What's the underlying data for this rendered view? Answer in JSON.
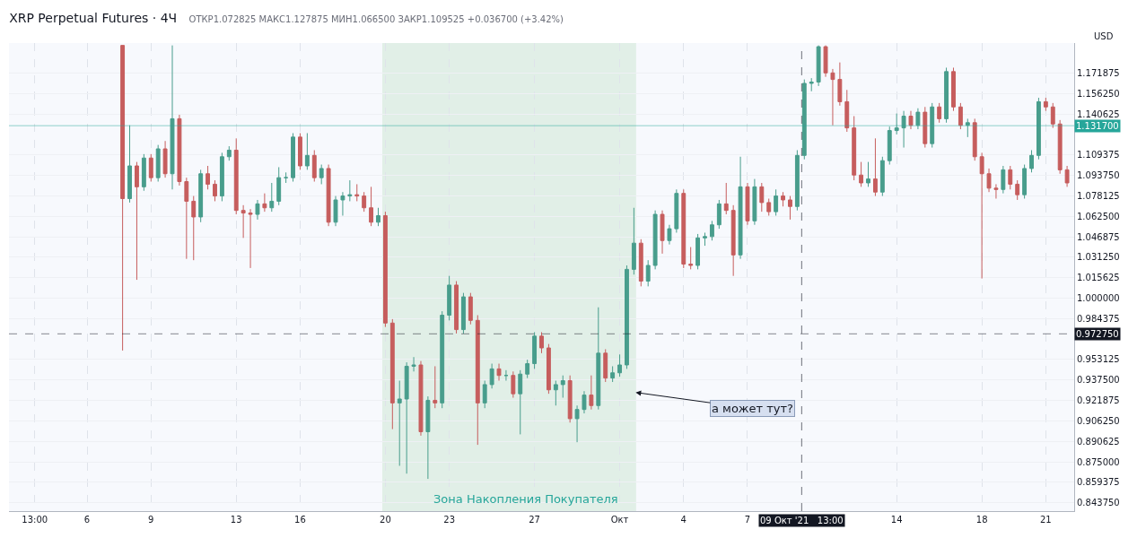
{
  "chart_data": {
    "type": "candlestick",
    "title": "XRP Perpetual Futures · 4Ч",
    "subtitle": "ОТКР1.072825 МАКС1.127875 МИН1.066500 ЗАКР1.109525 +0.036700 (+3.42%)",
    "ylabel": "USD",
    "colors": [
      "#c65d5d",
      "#489d8c",
      "#c65d5d",
      "#489d8c",
      "#c65d5d",
      "#489d8c",
      "#c65d5d",
      "#489d8c",
      "#c65d5d",
      "#c65d5d",
      "#c65d5d",
      "#489d8c",
      "#c65d5d",
      "#c65d5d",
      "#489d8c",
      "#489d8c",
      "#c65d5d",
      "#c65d5d",
      "#c65d5d",
      "#489d8c",
      "#c65d5d",
      "#489d8c",
      "#489d8c",
      "#489d8c",
      "#489d8c",
      "#c65d5d",
      "#489d8c",
      "#c65d5d",
      "#489d8c",
      "#c65d5d",
      "#489d8c",
      "#489d8c",
      "#489d8c",
      "#c65d5d",
      "#c65d5d",
      "#c65d5d",
      "#489d8c",
      "#c65d5d",
      "#c65d5d",
      "#489d8c",
      "#489d8c",
      "#489d8c",
      "#c65d5d",
      "#489d8c",
      "#c65d5d",
      "#489d8c",
      "#489d8c",
      "#c65d5d",
      "#489d8c",
      "#c65d5d",
      "#c65d5d",
      "#489d8c",
      "#489d8c",
      "#c65d5d",
      "#489d8c",
      "#c65d5d",
      "#489d8c",
      "#489d8c",
      "#489d8c",
      "#c65d5d",
      "#c65d5d",
      "#489d8c",
      "#489d8c",
      "#c65d5d",
      "#489d8c",
      "#489d8c",
      "#c65d5d",
      "#489d8c",
      "#c65d5d",
      "#489d8c",
      "#489d8c",
      "#489d8c",
      "#489d8c",
      "#c65d5d",
      "#489d8c",
      "#489d8c",
      "#c65d5d",
      "#489d8c",
      "#489d8c",
      "#c65d5d",
      "#c65d5d",
      "#489d8c",
      "#489d8c",
      "#489d8c",
      "#489d8c",
      "#c65d5d",
      "#c65d5d",
      "#489d8c",
      "#c65d5d",
      "#489d8c",
      "#c65d5d",
      "#c65d5d",
      "#489d8c",
      "#c65d5d",
      "#c65d5d",
      "#489d8c",
      "#489d8c",
      "#489d8c",
      "#489d8c",
      "#c65d5d",
      "#c65d5d",
      "#c65d5d",
      "#c65d5d",
      "#c65d5d",
      "#c65d5d",
      "#489d8c",
      "#c65d5d",
      "#489d8c",
      "#489d8c",
      "#489d8c",
      "#489d8c",
      "#c65d5d",
      "#489d8c",
      "#c65d5d",
      "#489d8c",
      "#c65d5d",
      "#489d8c",
      "#c65d5d",
      "#c65d5d",
      "#489d8c",
      "#c65d5d",
      "#c65d5d",
      "#c65d5d",
      "#c65d5d",
      "#489d8c",
      "#c65d5d",
      "#c65d5d",
      "#489d8c",
      "#489d8c",
      "#489d8c",
      "#c65d5d",
      "#c65d5d",
      "#c65d5d",
      "#c65d5d"
    ],
    "x": [
      "2021-09-07T16:00",
      "2021-09-08T00:00",
      "2021-09-08T08:00",
      "2021-09-08T16:00",
      "2021-09-09T00:00",
      "2021-09-09T08:00",
      "2021-09-09T16:00",
      "2021-09-10T00:00",
      "2021-09-10T08:00",
      "2021-09-10T16:00",
      "2021-09-11T00:00",
      "2021-09-11T08:00",
      "2021-09-11T16:00",
      "2021-09-12T00:00",
      "2021-09-12T08:00",
      "2021-09-12T16:00",
      "2021-09-13T00:00",
      "2021-09-13T08:00",
      "2021-09-13T16:00",
      "2021-09-14T00:00",
      "2021-09-14T08:00",
      "2021-09-14T16:00",
      "2021-09-15T00:00",
      "2021-09-15T08:00",
      "2021-09-15T16:00",
      "2021-09-16T00:00",
      "2021-09-16T08:00",
      "2021-09-16T16:00",
      "2021-09-17T00:00",
      "2021-09-17T08:00",
      "2021-09-17T16:00",
      "2021-09-18T00:00",
      "2021-09-18T08:00",
      "2021-09-18T16:00",
      "2021-09-19T00:00",
      "2021-09-19T08:00",
      "2021-09-19T16:00",
      "2021-09-20T00:00",
      "2021-09-20T08:00",
      "2021-09-20T16:00",
      "2021-09-21T00:00",
      "2021-09-21T08:00",
      "2021-09-21T16:00",
      "2021-09-22T00:00",
      "2021-09-22T08:00",
      "2021-09-22T16:00",
      "2021-09-23T00:00",
      "2021-09-23T08:00",
      "2021-09-23T16:00",
      "2021-09-24T00:00",
      "2021-09-24T08:00",
      "2021-09-24T16:00",
      "2021-09-25T00:00",
      "2021-09-25T08:00",
      "2021-09-25T16:00",
      "2021-09-26T00:00",
      "2021-09-26T08:00",
      "2021-09-26T16:00",
      "2021-09-27T00:00",
      "2021-09-27T08:00",
      "2021-09-27T16:00",
      "2021-09-28T00:00",
      "2021-09-28T08:00",
      "2021-09-28T16:00",
      "2021-09-29T00:00",
      "2021-09-29T08:00",
      "2021-09-29T16:00",
      "2021-09-30T00:00",
      "2021-09-30T08:00",
      "2021-09-30T16:00",
      "2021-10-01T00:00",
      "2021-10-01T08:00",
      "2021-10-01T16:00",
      "2021-10-02T00:00",
      "2021-10-02T08:00",
      "2021-10-02T16:00",
      "2021-10-03T00:00",
      "2021-10-03T08:00",
      "2021-10-03T16:00",
      "2021-10-04T00:00",
      "2021-10-04T08:00",
      "2021-10-04T16:00",
      "2021-10-05T00:00",
      "2021-10-05T08:00",
      "2021-10-05T16:00",
      "2021-10-06T00:00",
      "2021-10-06T08:00",
      "2021-10-06T16:00",
      "2021-10-07T00:00",
      "2021-10-07T08:00",
      "2021-10-07T16:00",
      "2021-10-08T00:00",
      "2021-10-08T08:00",
      "2021-10-08T16:00",
      "2021-10-09T00:00",
      "2021-10-09T08:00",
      "2021-10-09T16:00",
      "2021-10-10T00:00",
      "2021-10-10T08:00",
      "2021-10-10T16:00",
      "2021-10-11T00:00",
      "2021-10-11T08:00",
      "2021-10-11T16:00",
      "2021-10-12T00:00",
      "2021-10-12T08:00",
      "2021-10-12T16:00",
      "2021-10-13T00:00",
      "2021-10-13T08:00",
      "2021-10-13T16:00",
      "2021-10-14T00:00",
      "2021-10-14T08:00",
      "2021-10-14T16:00",
      "2021-10-15T00:00",
      "2021-10-15T08:00",
      "2021-10-15T16:00",
      "2021-10-16T00:00",
      "2021-10-16T08:00",
      "2021-10-16T16:00",
      "2021-10-17T00:00",
      "2021-10-17T08:00",
      "2021-10-17T16:00",
      "2021-10-18T00:00",
      "2021-10-18T08:00",
      "2021-10-18T16:00",
      "2021-10-19T00:00",
      "2021-10-19T08:00",
      "2021-10-19T16:00",
      "2021-10-20T00:00",
      "2021-10-20T08:00",
      "2021-10-20T16:00",
      "2021-10-21T00:00",
      "2021-10-21T08:00",
      "2021-10-21T16:00",
      "2021-10-22T00:00"
    ],
    "ohlc": [
      [
        1.193,
        1.193,
        0.96,
        1.076
      ],
      [
        1.076,
        1.132,
        1.073,
        1.101
      ],
      [
        1.101,
        1.104,
        1.014,
        1.085
      ],
      [
        1.085,
        1.11,
        1.082,
        1.107
      ],
      [
        1.107,
        1.11,
        1.089,
        1.092
      ],
      [
        1.092,
        1.117,
        1.089,
        1.114
      ],
      [
        1.114,
        1.12,
        1.092,
        1.095
      ],
      [
        1.095,
        1.193,
        1.083,
        1.137
      ],
      [
        1.137,
        1.14,
        1.086,
        1.089
      ],
      [
        1.089,
        1.092,
        1.03,
        1.074
      ],
      [
        1.074,
        1.078,
        1.029,
        1.062
      ],
      [
        1.062,
        1.098,
        1.058,
        1.095
      ],
      [
        1.095,
        1.101,
        1.083,
        1.087
      ],
      [
        1.087,
        1.09,
        1.074,
        1.078
      ],
      [
        1.078,
        1.111,
        1.074,
        1.108
      ],
      [
        1.108,
        1.116,
        1.105,
        1.113
      ],
      [
        1.113,
        1.122,
        1.064,
        1.067
      ],
      [
        1.067,
        1.071,
        1.046,
        1.065
      ],
      [
        1.065,
        1.068,
        1.023,
        1.064
      ],
      [
        1.064,
        1.075,
        1.06,
        1.072
      ],
      [
        1.072,
        1.08,
        1.066,
        1.069
      ],
      [
        1.069,
        1.088,
        1.066,
        1.074
      ],
      [
        1.074,
        1.1,
        1.071,
        1.092
      ],
      [
        1.092,
        1.096,
        1.088,
        1.092
      ],
      [
        1.092,
        1.126,
        1.089,
        1.123
      ],
      [
        1.123,
        1.126,
        1.098,
        1.101
      ],
      [
        1.101,
        1.126,
        1.098,
        1.109
      ],
      [
        1.109,
        1.113,
        1.089,
        1.092
      ],
      [
        1.092,
        1.102,
        1.087,
        1.099
      ],
      [
        1.099,
        1.102,
        1.055,
        1.058
      ],
      [
        1.058,
        1.078,
        1.055,
        1.075
      ],
      [
        1.075,
        1.081,
        1.063,
        1.078
      ],
      [
        1.078,
        1.09,
        1.074,
        1.079
      ],
      [
        1.079,
        1.087,
        1.074,
        1.078
      ],
      [
        1.078,
        1.081,
        1.066,
        1.069
      ],
      [
        1.069,
        1.085,
        1.055,
        1.058
      ],
      [
        1.058,
        1.069,
        1.055,
        1.063
      ],
      [
        1.063,
        1.066,
        0.978,
        0.981
      ],
      [
        0.981,
        0.984,
        0.9,
        0.92
      ],
      [
        0.92,
        0.937,
        0.872,
        0.923
      ],
      [
        0.923,
        0.951,
        0.866,
        0.948
      ],
      [
        0.948,
        0.955,
        0.944,
        0.949
      ],
      [
        0.949,
        0.952,
        0.895,
        0.898
      ],
      [
        0.898,
        0.925,
        0.862,
        0.922
      ],
      [
        0.922,
        0.948,
        0.916,
        0.92
      ],
      [
        0.92,
        0.99,
        0.916,
        0.987
      ],
      [
        0.987,
        1.017,
        0.983,
        1.01
      ],
      [
        1.01,
        1.013,
        0.973,
        0.976
      ],
      [
        0.976,
        1.004,
        0.973,
        1.001
      ],
      [
        1.001,
        1.004,
        0.98,
        0.983
      ],
      [
        0.983,
        0.987,
        0.888,
        0.92
      ],
      [
        0.92,
        0.937,
        0.916,
        0.934
      ],
      [
        0.934,
        0.95,
        0.931,
        0.946
      ],
      [
        0.946,
        0.95,
        0.937,
        0.941
      ],
      [
        0.941,
        0.945,
        0.937,
        0.941
      ],
      [
        0.941,
        0.944,
        0.924,
        0.927
      ],
      [
        0.927,
        0.945,
        0.896,
        0.942
      ],
      [
        0.942,
        0.953,
        0.939,
        0.95
      ],
      [
        0.95,
        0.974,
        0.946,
        0.971
      ],
      [
        0.971,
        0.974,
        0.958,
        0.962
      ],
      [
        0.962,
        0.965,
        0.927,
        0.93
      ],
      [
        0.93,
        0.937,
        0.918,
        0.934
      ],
      [
        0.934,
        0.941,
        0.924,
        0.937
      ],
      [
        0.937,
        0.941,
        0.905,
        0.908
      ],
      [
        0.908,
        0.918,
        0.89,
        0.915
      ],
      [
        0.915,
        0.929,
        0.912,
        0.926
      ],
      [
        0.926,
        0.941,
        0.915,
        0.918
      ],
      [
        0.918,
        0.993,
        0.915,
        0.958
      ],
      [
        0.958,
        0.961,
        0.936,
        0.939
      ],
      [
        0.939,
        0.948,
        0.936,
        0.943
      ],
      [
        0.943,
        0.957,
        0.94,
        0.949
      ],
      [
        0.949,
        1.025,
        0.946,
        1.022
      ],
      [
        1.022,
        1.069,
        1.018,
        1.042
      ],
      [
        1.042,
        1.045,
        1.009,
        1.013
      ],
      [
        1.013,
        1.029,
        1.009,
        1.025
      ],
      [
        1.025,
        1.067,
        1.022,
        1.064
      ],
      [
        1.064,
        1.067,
        1.034,
        1.044
      ],
      [
        1.044,
        1.056,
        1.041,
        1.053
      ],
      [
        1.053,
        1.083,
        1.05,
        1.08
      ],
      [
        1.08,
        1.083,
        1.023,
        1.026
      ],
      [
        1.026,
        1.039,
        1.022,
        1.025
      ],
      [
        1.025,
        1.049,
        1.022,
        1.046
      ],
      [
        1.046,
        1.05,
        1.04,
        1.047
      ],
      [
        1.047,
        1.059,
        1.044,
        1.056
      ],
      [
        1.056,
        1.075,
        1.053,
        1.072
      ],
      [
        1.072,
        1.088,
        1.064,
        1.067
      ],
      [
        1.067,
        1.071,
        1.017,
        1.033
      ],
      [
        1.033,
        1.108,
        1.03,
        1.085
      ],
      [
        1.085,
        1.088,
        1.056,
        1.059
      ],
      [
        1.059,
        1.091,
        1.056,
        1.085
      ],
      [
        1.085,
        1.088,
        1.066,
        1.073
      ],
      [
        1.073,
        1.076,
        1.063,
        1.066
      ],
      [
        1.066,
        1.083,
        1.063,
        1.078
      ],
      [
        1.078,
        1.081,
        1.07,
        1.075
      ],
      [
        1.075,
        1.078,
        1.06,
        1.07
      ],
      [
        1.07,
        1.113,
        1.067,
        1.109
      ],
      [
        1.109,
        1.167,
        1.106,
        1.164
      ],
      [
        1.164,
        1.168,
        1.158,
        1.165
      ],
      [
        1.165,
        1.193,
        1.162,
        1.192
      ],
      [
        1.192,
        1.193,
        1.169,
        1.172
      ],
      [
        1.172,
        1.175,
        1.132,
        1.167
      ],
      [
        1.167,
        1.18,
        1.147,
        1.15
      ],
      [
        1.15,
        1.159,
        1.127,
        1.13
      ],
      [
        1.13,
        1.139,
        1.09,
        1.094
      ],
      [
        1.094,
        1.104,
        1.085,
        1.088
      ],
      [
        1.088,
        1.104,
        1.085,
        1.091
      ],
      [
        1.091,
        1.122,
        1.078,
        1.081
      ],
      [
        1.081,
        1.108,
        1.078,
        1.105
      ],
      [
        1.105,
        1.131,
        1.102,
        1.128
      ],
      [
        1.128,
        1.141,
        1.125,
        1.13
      ],
      [
        1.13,
        1.143,
        1.115,
        1.139
      ],
      [
        1.139,
        1.143,
        1.129,
        1.132
      ],
      [
        1.132,
        1.145,
        1.129,
        1.142
      ],
      [
        1.142,
        1.146,
        1.115,
        1.118
      ],
      [
        1.118,
        1.149,
        1.115,
        1.146
      ],
      [
        1.146,
        1.149,
        1.134,
        1.137
      ],
      [
        1.137,
        1.176,
        1.134,
        1.173
      ],
      [
        1.173,
        1.176,
        1.143,
        1.146
      ],
      [
        1.146,
        1.149,
        1.129,
        1.132
      ],
      [
        1.132,
        1.137,
        1.123,
        1.134
      ],
      [
        1.134,
        1.137,
        1.105,
        1.108
      ],
      [
        1.108,
        1.111,
        1.015,
        1.095
      ],
      [
        1.095,
        1.099,
        1.081,
        1.084
      ],
      [
        1.084,
        1.087,
        1.076,
        1.083
      ],
      [
        1.083,
        1.101,
        1.08,
        1.098
      ],
      [
        1.098,
        1.101,
        1.083,
        1.087
      ],
      [
        1.087,
        1.09,
        1.075,
        1.079
      ],
      [
        1.079,
        1.102,
        1.076,
        1.099
      ],
      [
        1.099,
        1.113,
        1.096,
        1.109
      ],
      [
        1.109,
        1.153,
        1.106,
        1.15
      ],
      [
        1.15,
        1.153,
        1.143,
        1.146
      ],
      [
        1.146,
        1.149,
        1.13,
        1.133
      ],
      [
        1.133,
        1.136,
        1.095,
        1.098
      ],
      [
        1.098,
        1.101,
        1.085,
        1.088
      ]
    ],
    "xlim": [
      "2021-09-02T08:00",
      "2021-10-22T08:00"
    ],
    "xticks": [
      {
        "value": "2021-09-03T13:00",
        "label": "13:00"
      },
      {
        "value": "2021-09-06",
        "label": "6"
      },
      {
        "value": "2021-09-09",
        "label": "9"
      },
      {
        "value": "2021-09-13",
        "label": "13"
      },
      {
        "value": "2021-09-16",
        "label": "16"
      },
      {
        "value": "2021-09-20",
        "label": "20"
      },
      {
        "value": "2021-09-23",
        "label": "23"
      },
      {
        "value": "2021-09-27",
        "label": "27"
      },
      {
        "value": "2021-10-01",
        "label": "Окт"
      },
      {
        "value": "2021-10-04",
        "label": "4"
      },
      {
        "value": "2021-10-07",
        "label": "7"
      },
      {
        "value": "2021-10-14",
        "label": "14"
      },
      {
        "value": "2021-10-18",
        "label": "18"
      },
      {
        "value": "2021-10-21",
        "label": "21"
      }
    ],
    "ylim": [
      0.8374,
      1.1948
    ],
    "yticks": [
      {
        "value": 0.84375,
        "label": "0.843750"
      },
      {
        "value": 0.859375,
        "label": "0.859375"
      },
      {
        "value": 0.875,
        "label": "0.875000"
      },
      {
        "value": 0.890625,
        "label": "0.890625"
      },
      {
        "value": 0.90625,
        "label": "0.906250"
      },
      {
        "value": 0.921875,
        "label": "0.921875"
      },
      {
        "value": 0.9375,
        "label": "0.937500"
      },
      {
        "value": 0.953125,
        "label": "0.953125"
      },
      {
        "value": 0.984375,
        "label": "0.984375"
      },
      {
        "value": 1.0,
        "label": "1.000000"
      },
      {
        "value": 1.015625,
        "label": "1.015625"
      },
      {
        "value": 1.03125,
        "label": "1.031250"
      },
      {
        "value": 1.046875,
        "label": "1.046875"
      },
      {
        "value": 1.0625,
        "label": "1.062500"
      },
      {
        "value": 1.078125,
        "label": "1.078125"
      },
      {
        "value": 1.09375,
        "label": "1.093750"
      },
      {
        "value": 1.109375,
        "label": "1.109375"
      },
      {
        "value": 1.140625,
        "label": "1.140625"
      },
      {
        "value": 1.15625,
        "label": "1.156250"
      },
      {
        "value": 1.171875,
        "label": "1.171875"
      }
    ],
    "grid": true,
    "ref_lines": [
      {
        "axis": "y",
        "value": 1.1317,
        "label": "1.131700",
        "color": "#26a69a",
        "line_style": "solid"
      },
      {
        "axis": "y",
        "value": 0.97275,
        "label": "0.972750",
        "color": "#131722",
        "line_style": "dashed"
      },
      {
        "axis": "x",
        "value": "2021-10-09T13:00",
        "label": "09 Окт '21   13:00",
        "color": "#131722",
        "line_style": "dashed"
      }
    ],
    "bands": [
      {
        "axis": "x",
        "from": "2021-09-19T21:00",
        "to": "2021-10-01T18:00",
        "label": "Зона Накопления Покупателя",
        "color": "#4caf50"
      }
    ],
    "annotations": [
      {
        "text": "а может тут?",
        "x": "2021-10-01T18:00",
        "y": 0.928
      }
    ]
  }
}
